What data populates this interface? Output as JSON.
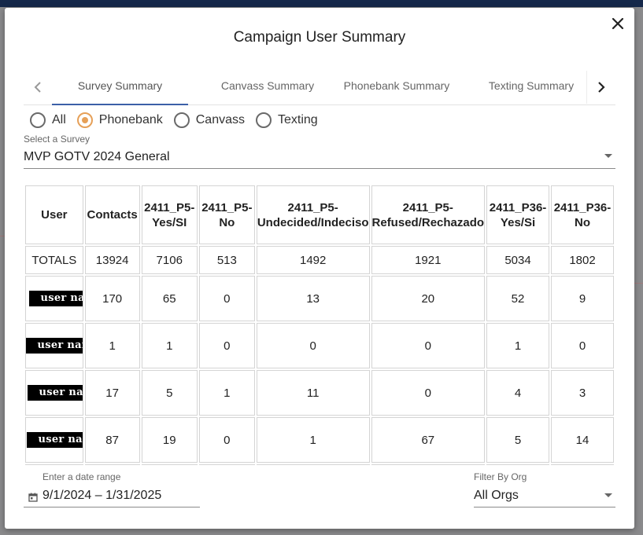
{
  "dialog": {
    "title": "Campaign User Summary"
  },
  "tabs": [
    {
      "label": "Survey Summary",
      "active": true
    },
    {
      "label": "Canvass Summary",
      "active": false
    },
    {
      "label": "Phonebank Summary",
      "active": false
    },
    {
      "label": "Texting Summary",
      "active": false
    }
  ],
  "filter": {
    "options": [
      {
        "label": "All",
        "checked": false
      },
      {
        "label": "Phonebank",
        "checked": true
      },
      {
        "label": "Canvass",
        "checked": false
      },
      {
        "label": "Texting",
        "checked": false
      }
    ]
  },
  "survey": {
    "label": "Select a Survey",
    "value": "MVP GOTV 2024 General"
  },
  "table": {
    "columns": [
      "User",
      "Contacts",
      "2411_P5-Yes/SI",
      "2411_P5-No",
      "2411_P5-Undecided/Indeciso",
      "2411_P5-Refused/Rechazado",
      "2411_P36-Yes/Si",
      "2411_P36-No"
    ],
    "totals": [
      "TOTALS",
      "13924",
      "7106",
      "513",
      "1492",
      "1921",
      "5034",
      "1802"
    ],
    "rows": [
      {
        "user": "user name",
        "values": [
          "170",
          "65",
          "0",
          "13",
          "20",
          "52",
          "9"
        ]
      },
      {
        "user": "user name",
        "values": [
          "1",
          "1",
          "0",
          "0",
          "0",
          "1",
          "0"
        ]
      },
      {
        "user": "user name",
        "values": [
          "17",
          "5",
          "1",
          "11",
          "0",
          "4",
          "3"
        ]
      },
      {
        "user": "user name",
        "values": [
          "87",
          "19",
          "0",
          "1",
          "67",
          "5",
          "14"
        ]
      }
    ]
  },
  "date_range": {
    "label": "Enter a date range",
    "value": "9/1/2024 – 1/31/2025"
  },
  "org_filter": {
    "label": "Filter By Org",
    "value": "All Orgs"
  },
  "colors": {
    "accent_radio": "#e6a058",
    "tab_indicator": "#3b5fa7"
  }
}
